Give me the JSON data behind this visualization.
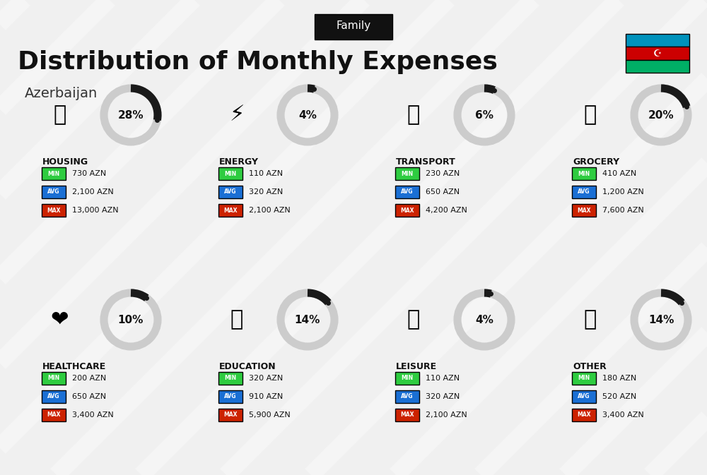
{
  "title": "Distribution of Monthly Expenses",
  "subtitle": "Azerbaijan",
  "family_label": "Family",
  "bg_color": "#f0f0f0",
  "categories": [
    {
      "name": "HOUSING",
      "pct": 28,
      "min": "730 AZN",
      "avg": "2,100 AZN",
      "max": "13,000 AZN",
      "row": 0,
      "col": 0
    },
    {
      "name": "ENERGY",
      "pct": 4,
      "min": "110 AZN",
      "avg": "320 AZN",
      "max": "2,100 AZN",
      "row": 0,
      "col": 1
    },
    {
      "name": "TRANSPORT",
      "pct": 6,
      "min": "230 AZN",
      "avg": "650 AZN",
      "max": "4,200 AZN",
      "row": 0,
      "col": 2
    },
    {
      "name": "GROCERY",
      "pct": 20,
      "min": "410 AZN",
      "avg": "1,200 AZN",
      "max": "7,600 AZN",
      "row": 0,
      "col": 3
    },
    {
      "name": "HEALTHCARE",
      "pct": 10,
      "min": "200 AZN",
      "avg": "650 AZN",
      "max": "3,400 AZN",
      "row": 1,
      "col": 0
    },
    {
      "name": "EDUCATION",
      "pct": 14,
      "min": "320 AZN",
      "avg": "910 AZN",
      "max": "5,900 AZN",
      "row": 1,
      "col": 1
    },
    {
      "name": "LEISURE",
      "pct": 4,
      "min": "110 AZN",
      "avg": "320 AZN",
      "max": "2,100 AZN",
      "row": 1,
      "col": 2
    },
    {
      "name": "OTHER",
      "pct": 14,
      "min": "180 AZN",
      "avg": "520 AZN",
      "max": "3,400 AZN",
      "row": 1,
      "col": 3
    }
  ],
  "min_color": "#2ecc40",
  "avg_color": "#1a6fd4",
  "max_color": "#cc2200",
  "label_color": "white",
  "donut_filled_color": "#1a1a1a",
  "donut_empty_color": "#cccccc",
  "flag_colors": [
    "#0092BC",
    "#CC0001",
    "#00AF66"
  ],
  "header_bg": "#111111",
  "header_text": "white"
}
